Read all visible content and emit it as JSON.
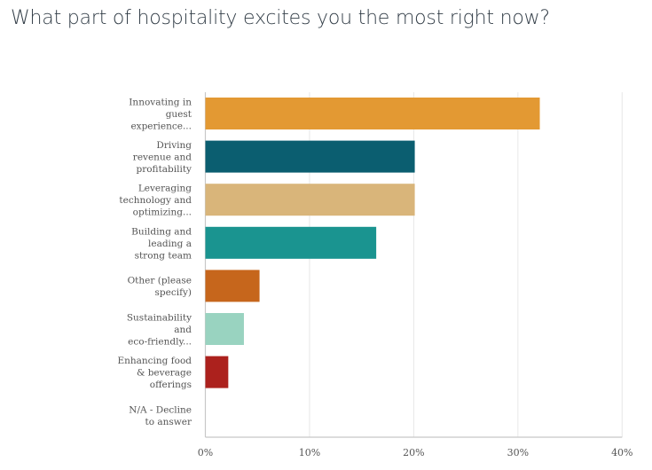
{
  "chart_data": {
    "type": "bar",
    "orientation": "horizontal",
    "title": "What part of hospitality excites you the most right now?",
    "categories": [
      [
        "Innovating in",
        "guest",
        "experience..."
      ],
      [
        "Driving",
        "revenue and",
        "profitability"
      ],
      [
        "Leveraging",
        "technology and",
        "optimizing..."
      ],
      [
        "Building and",
        "leading a",
        "strong team"
      ],
      [
        "Other (please",
        "specify)"
      ],
      [
        "Sustainability",
        "and",
        "eco-friendly..."
      ],
      [
        "Enhancing food",
        "& beverage",
        "offerings"
      ],
      [
        "N/A - Decline",
        "to answer"
      ]
    ],
    "values": [
      32.1,
      20.1,
      20.1,
      16.4,
      5.2,
      3.7,
      2.2,
      0
    ],
    "colors": [
      "#e39933",
      "#0b5e70",
      "#d9b57a",
      "#1a9490",
      "#c6661c",
      "#99d3c0",
      "#ac211d",
      "#cccccc"
    ],
    "xlim": [
      0,
      40
    ],
    "xticks": [
      "0%",
      "10%",
      "20%",
      "30%",
      "40%"
    ],
    "xlabel": "",
    "ylabel": "",
    "grid": true,
    "legend": "none"
  }
}
